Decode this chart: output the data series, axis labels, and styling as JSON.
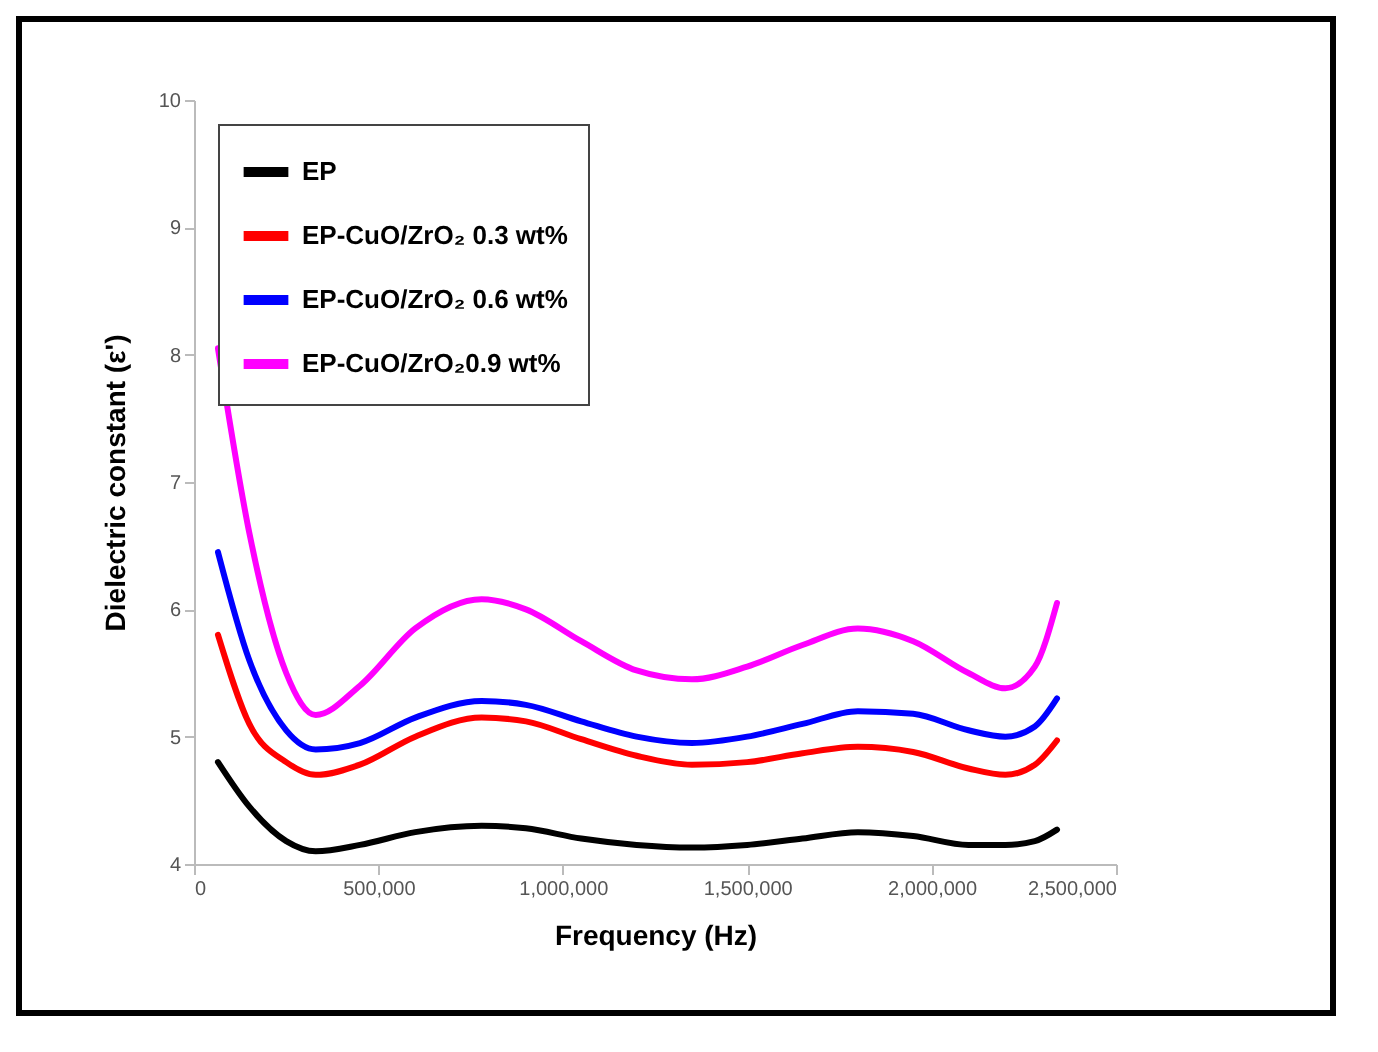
{
  "chart_data": {
    "type": "line",
    "xlabel": "Frequency (Hz)",
    "ylabel": "Dielectric constant (ε')",
    "x": [
      65000,
      150000,
      250000,
      330000,
      450000,
      600000,
      780000,
      900000,
      1050000,
      1200000,
      1350000,
      1500000,
      1650000,
      1800000,
      1950000,
      2100000,
      2200000,
      2280000,
      2340000
    ],
    "series": [
      {
        "name": "EP",
        "color": "#000000",
        "values": [
          4.8,
          4.45,
          4.18,
          4.1,
          4.15,
          4.25,
          4.3,
          4.28,
          4.2,
          4.15,
          4.13,
          4.15,
          4.2,
          4.25,
          4.22,
          4.15,
          4.15,
          4.18,
          4.27
        ]
      },
      {
        "name": "EP-CuO/ZrO₂ 0.3 wt%",
        "color": "#ff0000",
        "values": [
          5.8,
          5.1,
          4.8,
          4.7,
          4.78,
          5.0,
          5.15,
          5.12,
          4.98,
          4.85,
          4.78,
          4.8,
          4.87,
          4.92,
          4.88,
          4.75,
          4.7,
          4.78,
          4.97
        ]
      },
      {
        "name": "EP-CuO/ZrO₂ 0.6 wt%",
        "color": "#0000ff",
        "values": [
          6.45,
          5.6,
          5.05,
          4.9,
          4.95,
          5.15,
          5.28,
          5.25,
          5.12,
          5.0,
          4.95,
          5.0,
          5.1,
          5.2,
          5.18,
          5.05,
          5.0,
          5.08,
          5.3
        ]
      },
      {
        "name": "EP-CuO/ZrO₂0.9 wt%",
        "color": "#ff00ff",
        "values": [
          8.05,
          6.6,
          5.5,
          5.17,
          5.4,
          5.85,
          6.08,
          6.0,
          5.75,
          5.52,
          5.45,
          5.55,
          5.72,
          5.85,
          5.75,
          5.5,
          5.38,
          5.55,
          6.05
        ]
      }
    ],
    "xlim": [
      0,
      2500000
    ],
    "xticks": [
      0,
      {
        "value": 500000,
        "label": "500,000"
      },
      {
        "value": 1000000,
        "label": "1,000,000"
      },
      {
        "value": 1500000,
        "label": "1,500,000"
      },
      {
        "value": 2000000,
        "label": "2,000,000"
      },
      {
        "value": 2500000,
        "label": "2,500,000"
      }
    ],
    "ylim": [
      4,
      10
    ],
    "yticks": [
      4,
      5,
      6,
      7,
      8,
      9,
      10
    ],
    "grid": false,
    "legend": "top left",
    "marker": "none",
    "line_style": "solid"
  }
}
